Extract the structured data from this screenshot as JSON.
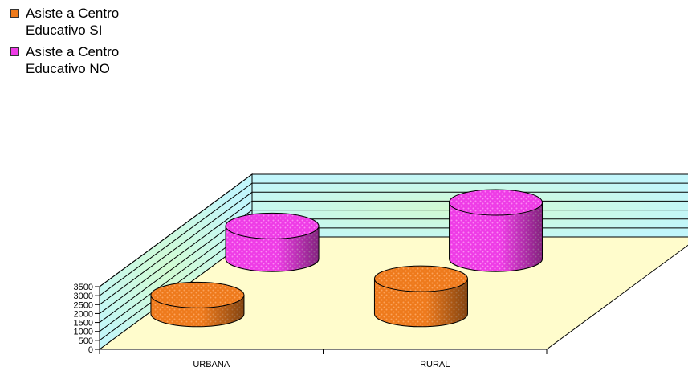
{
  "chart_data": {
    "type": "bar",
    "categories": [
      "URBANA",
      "RURAL"
    ],
    "series": [
      {
        "name": "Asiste a Centro Educativo SI",
        "values": [
          1050,
          1960
        ],
        "color": "#ee7a1c"
      },
      {
        "name": "Asiste a Centro Educativo NO",
        "values": [
          1830,
          3150
        ],
        "color": "#ee3ce6"
      }
    ],
    "ylim": [
      0,
      3500
    ],
    "yticks": [
      "0",
      "500",
      "1000",
      "1500",
      "2000",
      "2500",
      "3000",
      "3500"
    ],
    "grid": true,
    "legend_position": "top-left",
    "style": "3d-cylinder",
    "colors": {
      "back_wall": "#c6fbfb",
      "side_wall": "#d8fdf0",
      "floor": "#fffccc"
    }
  }
}
